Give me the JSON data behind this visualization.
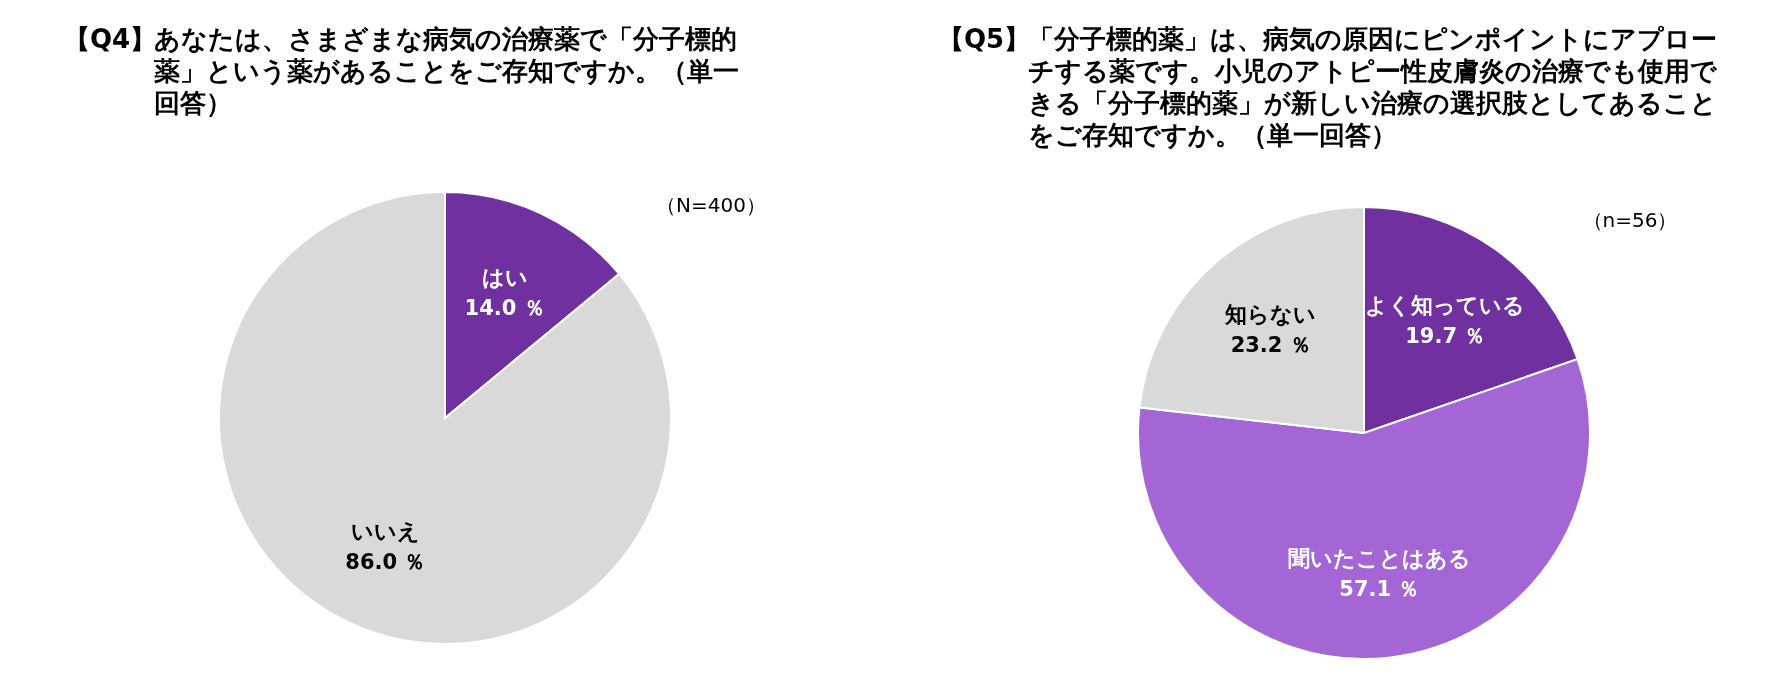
{
  "chart_data": [
    {
      "type": "pie",
      "title": "【Q4】あなたは、さまざまな病気の治療薬で「分子標的薬」という薬があることをご存知ですか。（単一回答）",
      "annotations": [
        "（N=400）"
      ],
      "categories": [
        "はい",
        "いいえ"
      ],
      "values": [
        14.0,
        86.0
      ],
      "value_labels": [
        "14.0 ％",
        "86.0 ％"
      ],
      "colors": [
        "#7030a0",
        "#d9d9d9"
      ]
    },
    {
      "type": "pie",
      "title": "【Q5】「分子標的薬」は、病気の原因にピンポイントにアプローチする薬です。小児のアトピー性皮膚炎の治療でも使用できる「分子標的薬」が新しい治療の選択肢としてあることをご存知ですか。（単一回答）",
      "annotations": [
        "（n=56）"
      ],
      "categories": [
        "よく知っている",
        "聞いたことはある",
        "知らない"
      ],
      "values": [
        19.7,
        57.1,
        23.2
      ],
      "value_labels": [
        "19.7 ％",
        "57.1 ％",
        "23.2 ％"
      ],
      "colors": [
        "#7030a0",
        "#a366d4",
        "#d9d9d9"
      ]
    }
  ]
}
